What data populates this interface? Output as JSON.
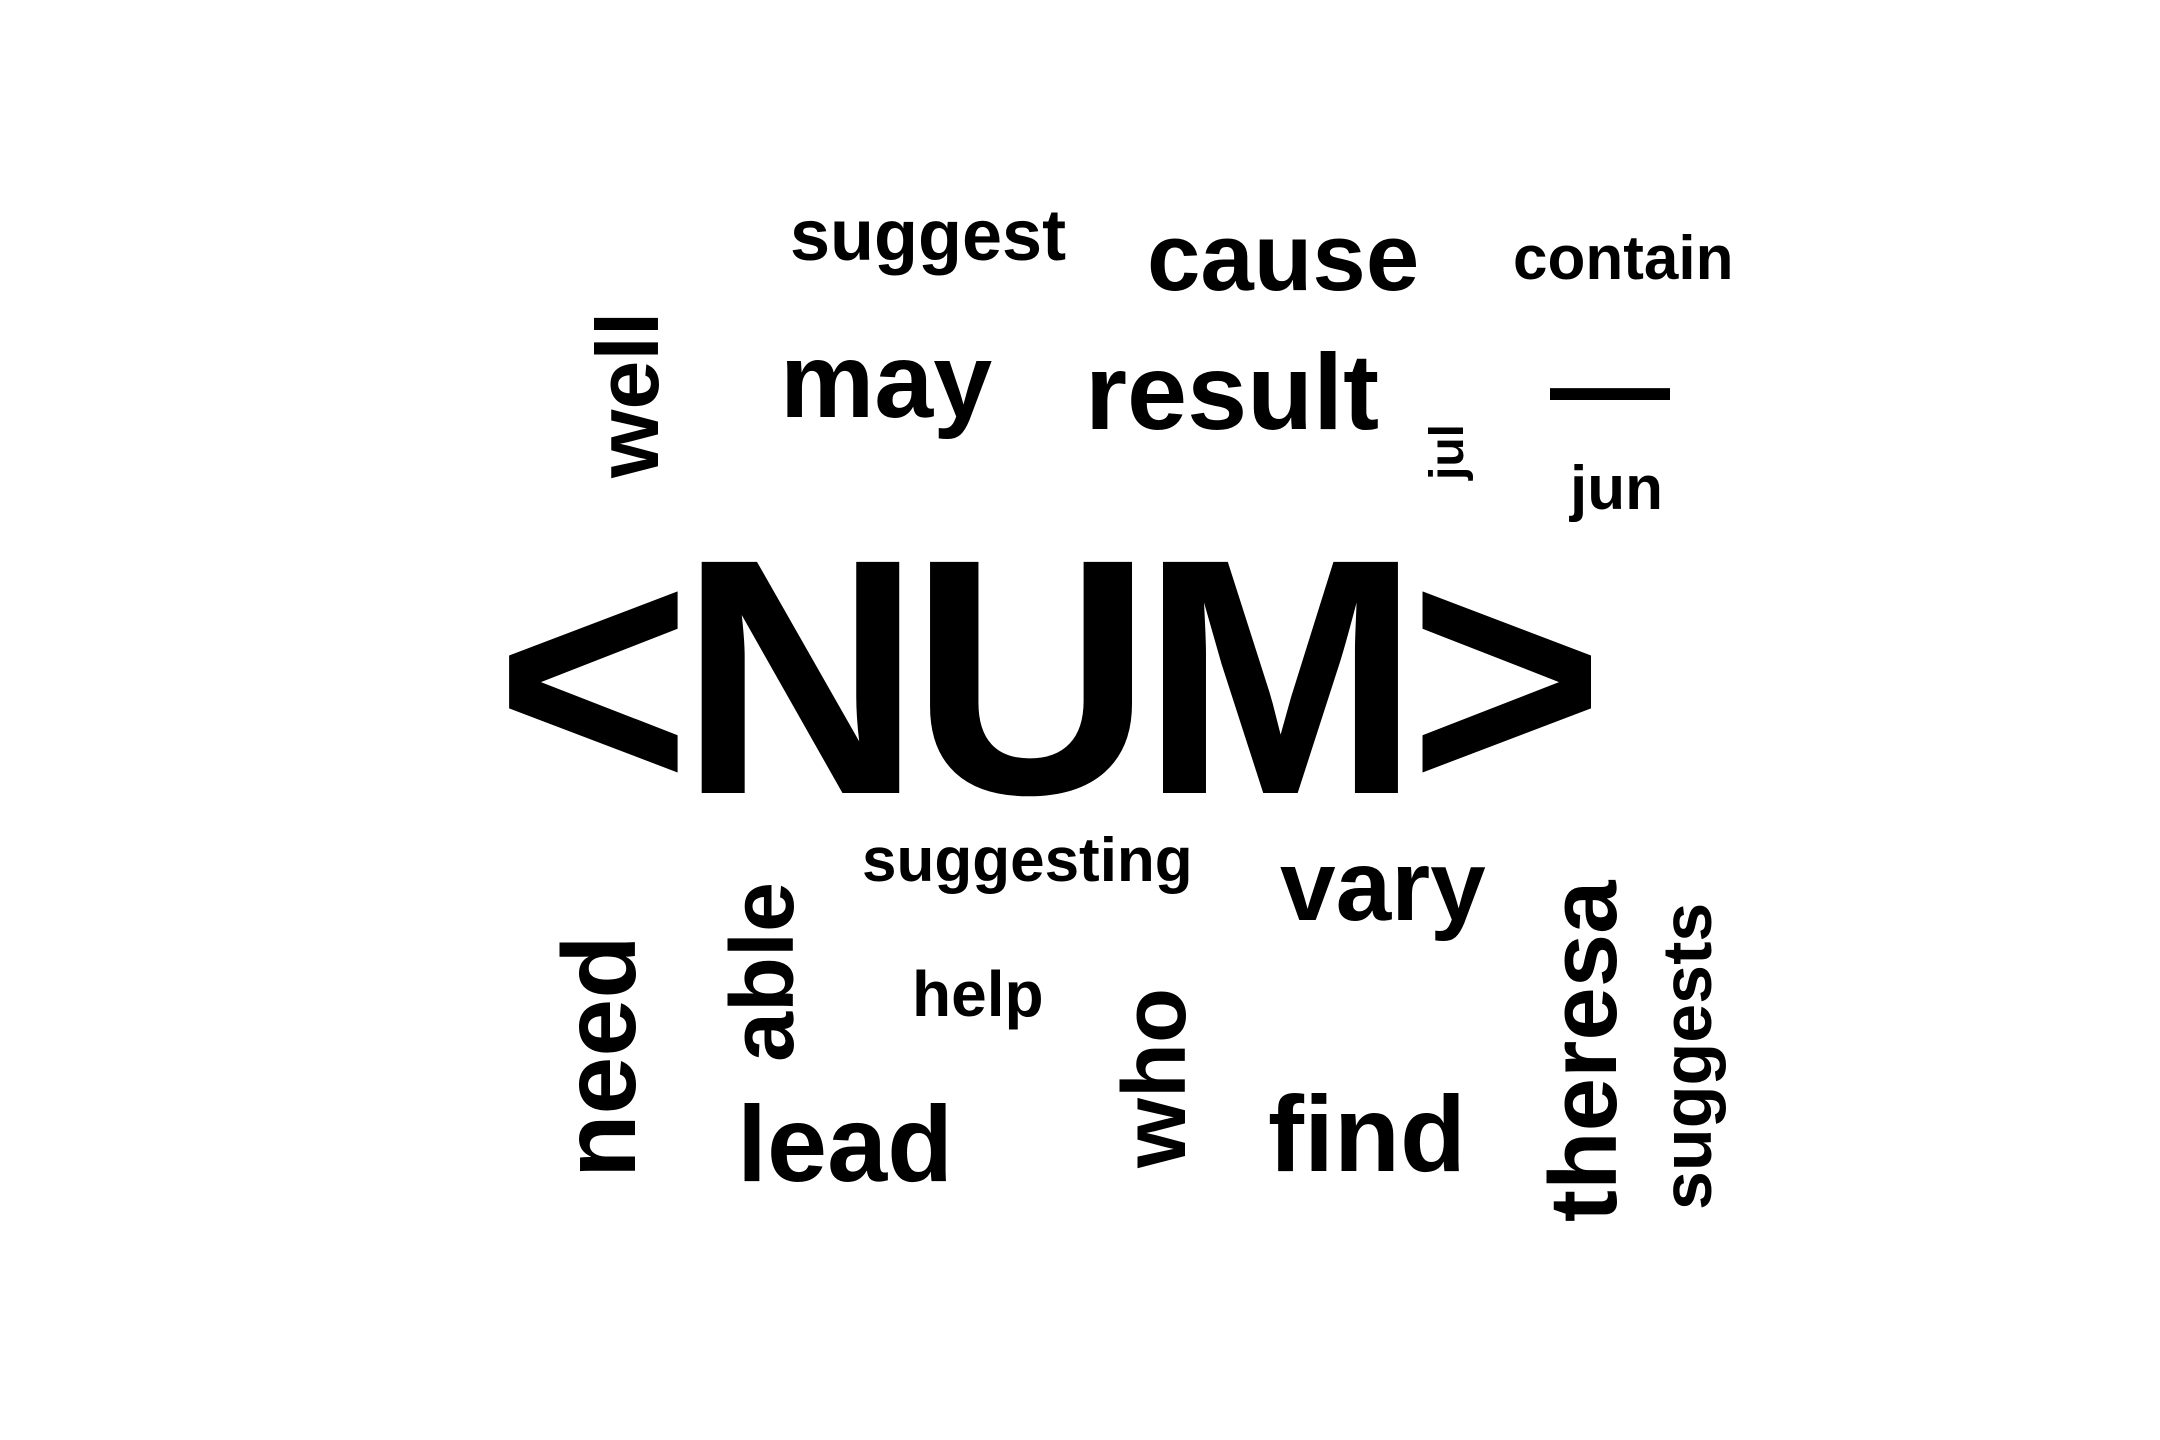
{
  "words": {
    "num": "<NUM>",
    "suggest": "suggest",
    "cause": "cause",
    "contain": "contain",
    "well": "well",
    "may": "may",
    "result": "result",
    "dash": "—",
    "jul": "jul",
    "jun": "jun",
    "suggesting": "suggesting",
    "vary": "vary",
    "able": "able",
    "need": "need",
    "help": "help",
    "who": "who",
    "theresa": "theresa",
    "suggests": "suggests",
    "lead": "lead",
    "find": "find"
  },
  "colors": {
    "text": "#000000",
    "background": "#ffffff"
  }
}
